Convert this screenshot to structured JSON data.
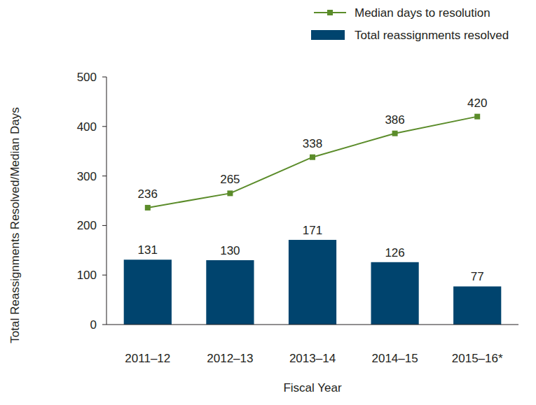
{
  "chart_data": {
    "type": "bar",
    "categories": [
      "2011–12",
      "2012–13",
      "2013–14",
      "2014–15",
      "2015–16*"
    ],
    "series": [
      {
        "name": "Median days to resolution",
        "type": "line",
        "color": "#5b8c2a",
        "marker": "square",
        "values": [
          236,
          265,
          338,
          386,
          420
        ]
      },
      {
        "name": "Total reassignments resolved",
        "type": "bar",
        "color": "#00446e",
        "values": [
          131,
          130,
          171,
          126,
          77
        ]
      }
    ],
    "x_label": "Fiscal Year",
    "y_label": "Total Reassignments Resolved/Median Days",
    "ylim": [
      0,
      500
    ],
    "yticks": [
      0,
      100,
      200,
      300,
      400,
      500
    ],
    "grid": false,
    "legend": "top-right",
    "data_labels": true
  }
}
